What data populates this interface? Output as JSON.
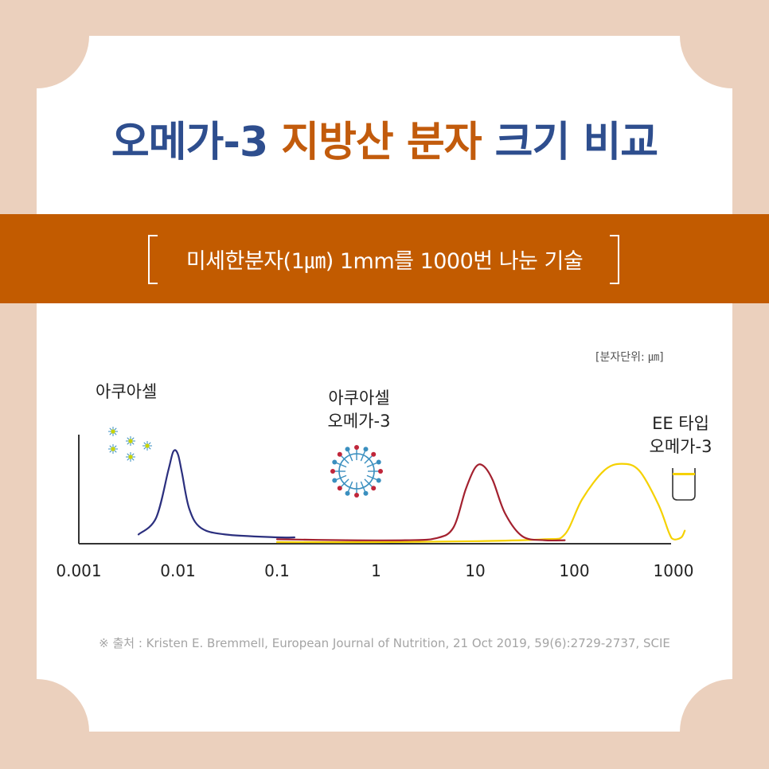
{
  "title": {
    "part1": "오메가-3",
    "part2": "지방산 분자",
    "part3": "크기 비교"
  },
  "banner": {
    "text": "미세한분자(1㎛) 1mm를 1000번 나눈 기술"
  },
  "unit_label": "[분자단위: ㎛]",
  "labels": {
    "aquacelle": "아쿠아셀",
    "aquacelle_omega_line1": "아쿠아셀",
    "aquacelle_omega_line2": "오메가-3",
    "ee_line1": "EE 타입",
    "ee_line2": "오메가-3"
  },
  "source": "※ 출처 : Kristen E. Bremmell, European Journal of Nutrition, 21 Oct 2019, 59(6):2729-2737, SCIE",
  "colors": {
    "accent_orange": "#c25b00",
    "title_blue": "#2e4e8e",
    "series_navy": "#2b2f7e",
    "series_red": "#a3212f",
    "series_yellow": "#f5d100"
  },
  "chart_data": {
    "type": "line",
    "xscale": "log",
    "x_ticks": [
      "0.001",
      "0.01",
      "0.1",
      "1",
      "10",
      "100",
      "1000"
    ],
    "xlim": [
      0.001,
      1000
    ],
    "series": [
      {
        "name": "아쿠아셀",
        "color": "#2b2f7e",
        "points": [
          [
            0.004,
            0.08
          ],
          [
            0.006,
            0.25
          ],
          [
            0.008,
            0.75
          ],
          [
            0.009,
            0.95
          ],
          [
            0.01,
            0.92
          ],
          [
            0.011,
            0.72
          ],
          [
            0.013,
            0.35
          ],
          [
            0.017,
            0.15
          ],
          [
            0.03,
            0.08
          ],
          [
            0.1,
            0.05
          ],
          [
            0.15,
            0.05
          ]
        ]
      },
      {
        "name": "아쿠아셀 오메가-3",
        "color": "#a3212f",
        "points": [
          [
            0.1,
            0.03
          ],
          [
            0.5,
            0.02
          ],
          [
            2,
            0.02
          ],
          [
            4,
            0.04
          ],
          [
            6,
            0.15
          ],
          [
            8,
            0.55
          ],
          [
            10,
            0.78
          ],
          [
            12,
            0.8
          ],
          [
            15,
            0.65
          ],
          [
            20,
            0.3
          ],
          [
            30,
            0.06
          ],
          [
            50,
            0.02
          ],
          [
            80,
            0.02
          ]
        ]
      },
      {
        "name": "EE 타입 오메가-3",
        "color": "#f5d100",
        "points": [
          [
            0.1,
            0.0
          ],
          [
            1,
            0.0
          ],
          [
            10,
            0.01
          ],
          [
            50,
            0.03
          ],
          [
            80,
            0.08
          ],
          [
            120,
            0.45
          ],
          [
            200,
            0.75
          ],
          [
            300,
            0.82
          ],
          [
            450,
            0.75
          ],
          [
            700,
            0.4
          ],
          [
            900,
            0.1
          ],
          [
            1000,
            0.03
          ],
          [
            1200,
            0.05
          ],
          [
            1300,
            0.12
          ]
        ]
      }
    ]
  }
}
